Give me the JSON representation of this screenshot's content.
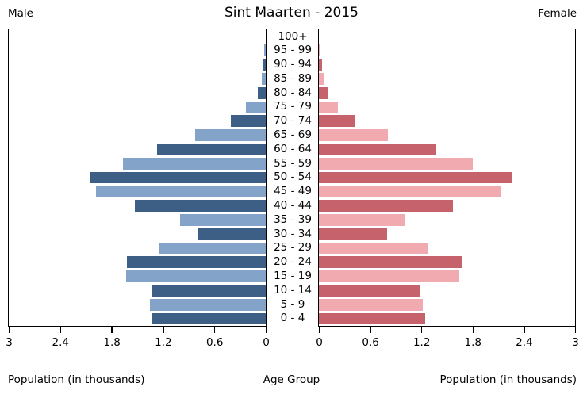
{
  "header": {
    "left_label": "Male",
    "right_label": "Female"
  },
  "footer": {
    "left_axis_label": "Population (in thousands)",
    "center_label": "Age Group",
    "right_axis_label": "Population (in thousands)"
  },
  "chart_data": {
    "type": "bar",
    "subtype": "population-pyramid",
    "title": "Sint Maarten - 2015",
    "categories": [
      "100+",
      "95 - 99",
      "90 - 94",
      "85 - 89",
      "80 - 84",
      "75 - 79",
      "70 - 74",
      "65 - 69",
      "60 - 64",
      "55 - 59",
      "50 - 54",
      "45 - 49",
      "40 - 44",
      "35 - 39",
      "30 - 34",
      "25 - 29",
      "20 - 24",
      "15 - 19",
      "10 - 14",
      "5 - 9",
      "0 - 4"
    ],
    "series": [
      {
        "name": "Male",
        "side": "left",
        "values": [
          0.0,
          0.02,
          0.03,
          0.05,
          0.09,
          0.23,
          0.41,
          0.82,
          1.27,
          1.67,
          2.05,
          1.98,
          1.53,
          1.0,
          0.79,
          1.25,
          1.62,
          1.63,
          1.32,
          1.35,
          1.33
        ]
      },
      {
        "name": "Female",
        "side": "right",
        "values": [
          0.0,
          0.02,
          0.04,
          0.06,
          0.11,
          0.22,
          0.42,
          0.81,
          1.37,
          1.8,
          2.27,
          2.13,
          1.57,
          1.0,
          0.8,
          1.27,
          1.68,
          1.64,
          1.19,
          1.22,
          1.24
        ]
      }
    ],
    "xlim": [
      0,
      3
    ],
    "xticks": [
      0,
      0.6,
      1.2,
      1.8,
      2.4,
      3
    ],
    "xtick_labels": [
      "0",
      "0.6",
      "1.2",
      "1.8",
      "2.4",
      "3"
    ],
    "grid": "off",
    "legend": "none",
    "colors": {
      "male_dark": "#3e5f85",
      "male_light": "#84a3c9",
      "female_dark": "#c5626b",
      "female_light": "#f1aaaf",
      "axis": "#000000",
      "background": "#ffffff"
    }
  }
}
